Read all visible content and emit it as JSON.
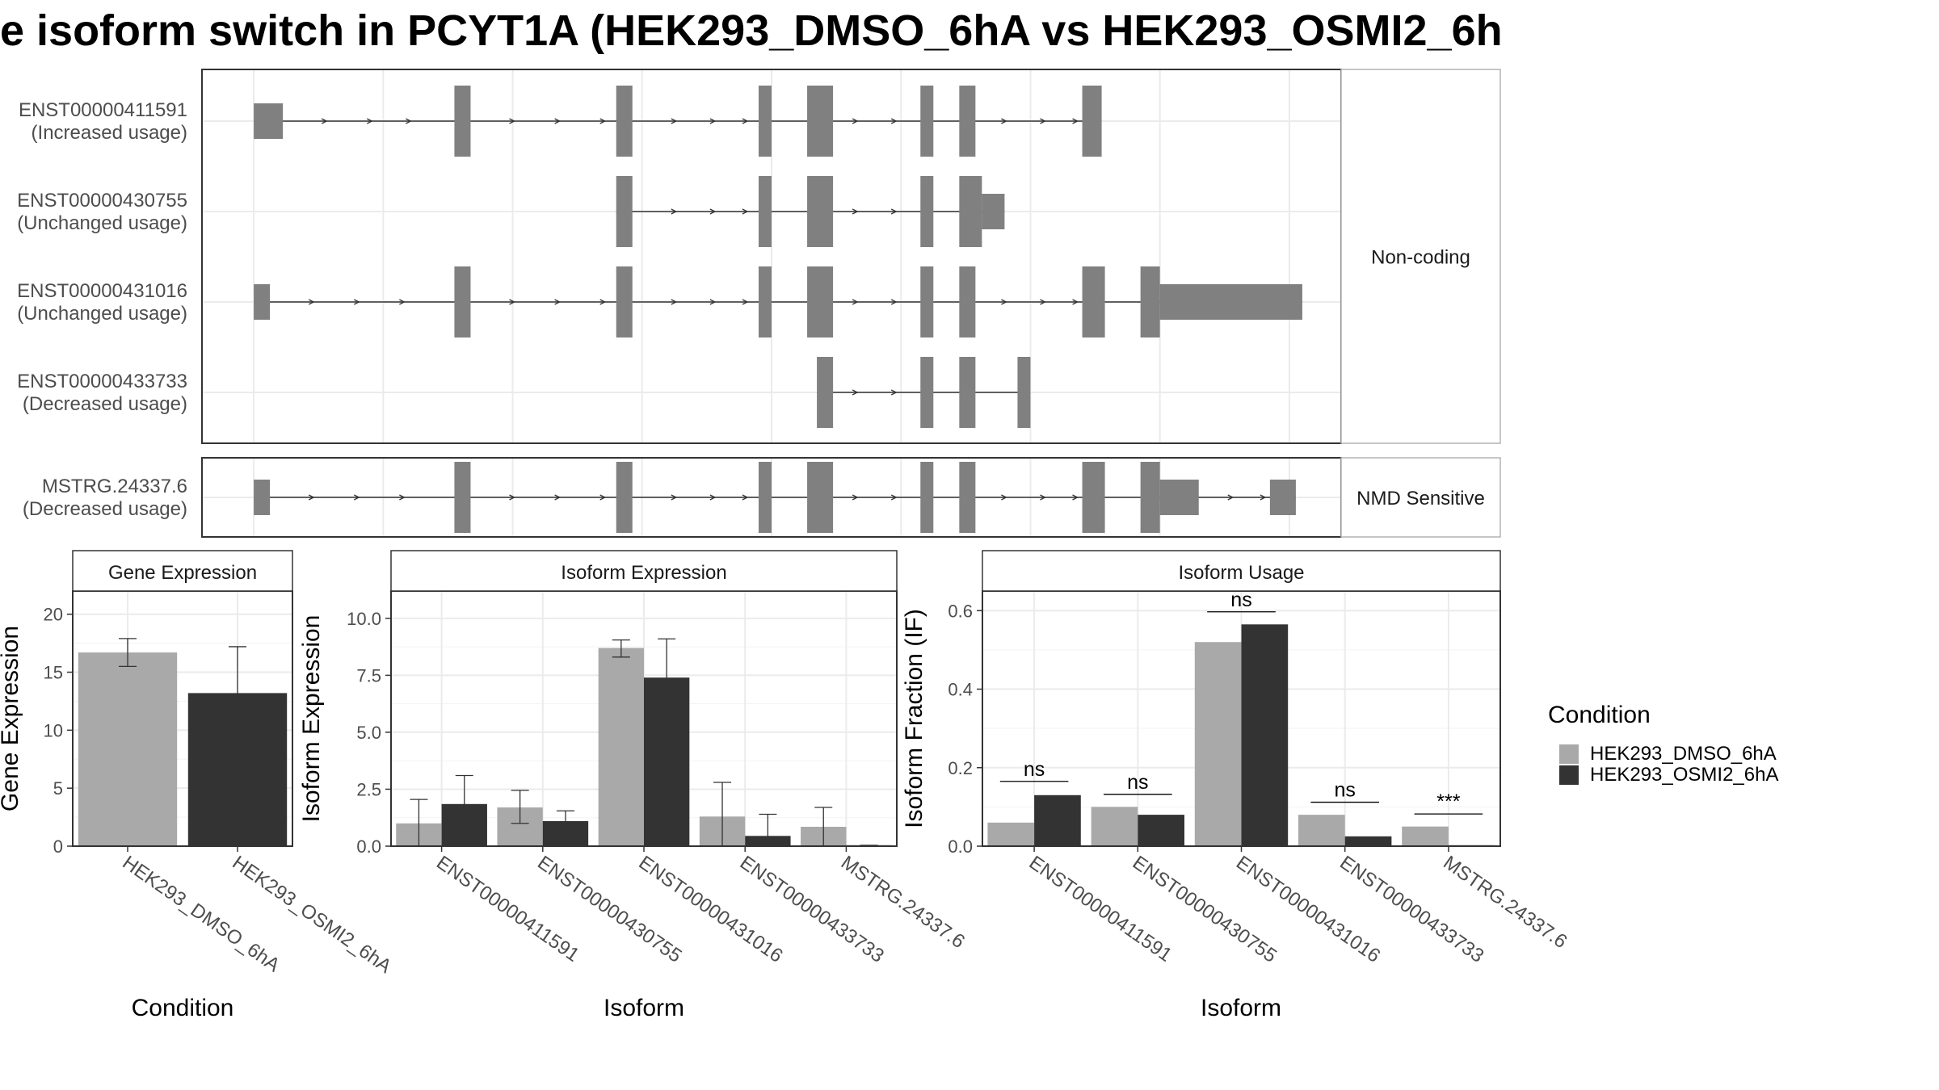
{
  "title": "e isoform switch in PCYT1A (HEK293_DMSO_6hA vs HEK293_OSMI2_6h",
  "colors": {
    "dmso": "#a9a9a9",
    "osmi": "#333333",
    "exon": "#808080",
    "intron": "#333333",
    "grid": "#ebebeb",
    "panel_border": "#333333",
    "strip_border": "#b3b3b3"
  },
  "structure": {
    "x_range": [
      -8,
      168
    ],
    "facets": [
      {
        "label": "Non-coding",
        "transcripts": [
          {
            "id": "ENST00000411591",
            "usage": "(Increased usage)",
            "exons": [
              [
                0,
                4.5,
                "utr"
              ],
              [
                31,
                33.5,
                "cds"
              ],
              [
                56,
                58.5,
                "cds"
              ],
              [
                78,
                80,
                "cds"
              ],
              [
                85.5,
                89.5,
                "cds"
              ],
              [
                103,
                105,
                "cds"
              ],
              [
                109,
                111.5,
                "cds"
              ],
              [
                128,
                131,
                "cds"
              ]
            ],
            "arrows": [
              11,
              18,
              24,
              40,
              47,
              54,
              65,
              71,
              76,
              93,
              99,
              116,
              122,
              127
            ]
          },
          {
            "id": "ENST00000430755",
            "usage": "(Unchanged usage)",
            "exons": [
              [
                56,
                58.5,
                "cds"
              ],
              [
                78,
                80,
                "cds"
              ],
              [
                85.5,
                89.5,
                "cds"
              ],
              [
                103,
                105,
                "cds"
              ],
              [
                109,
                112.5,
                "cds"
              ],
              [
                112.5,
                116,
                "utr"
              ]
            ],
            "arrows": [
              65,
              71,
              76,
              93,
              99
            ]
          },
          {
            "id": "ENST00000431016",
            "usage": "(Unchanged usage)",
            "exons": [
              [
                0,
                2.5,
                "utr"
              ],
              [
                31,
                33.5,
                "cds"
              ],
              [
                56,
                58.5,
                "cds"
              ],
              [
                78,
                80,
                "cds"
              ],
              [
                85.5,
                89.5,
                "cds"
              ],
              [
                103,
                105,
                "cds"
              ],
              [
                109,
                111.5,
                "cds"
              ],
              [
                128,
                131.5,
                "cds"
              ],
              [
                137,
                140,
                "cds"
              ],
              [
                140,
                162,
                "utr"
              ]
            ],
            "arrows": [
              9,
              16,
              23,
              40,
              47,
              54,
              65,
              71,
              76,
              93,
              99,
              116,
              122,
              127
            ]
          },
          {
            "id": "ENST00000433733",
            "usage": "(Decreased usage)",
            "exons": [
              [
                87,
                89.5,
                "cds"
              ],
              [
                103,
                105,
                "cds"
              ],
              [
                109,
                111.5,
                "cds"
              ],
              [
                118,
                120,
                "cds"
              ]
            ],
            "arrows": [
              93,
              99
            ]
          }
        ]
      },
      {
        "label": "NMD Sensitive",
        "transcripts": [
          {
            "id": "MSTRG.24337.6",
            "usage": "(Decreased usage)",
            "exons": [
              [
                0,
                2.5,
                "utr"
              ],
              [
                31,
                33.5,
                "cds"
              ],
              [
                56,
                58.5,
                "cds"
              ],
              [
                78,
                80,
                "cds"
              ],
              [
                85.5,
                89.5,
                "cds"
              ],
              [
                103,
                105,
                "cds"
              ],
              [
                109,
                111.5,
                "cds"
              ],
              [
                128,
                131.5,
                "cds"
              ],
              [
                137,
                140,
                "cds"
              ],
              [
                140,
                146,
                "utr"
              ],
              [
                157,
                161,
                "utr"
              ]
            ],
            "arrows": [
              9,
              16,
              23,
              40,
              47,
              54,
              65,
              71,
              76,
              93,
              99,
              116,
              122,
              127,
              151,
              156
            ]
          }
        ]
      }
    ]
  },
  "chart_data": [
    {
      "type": "bar",
      "title": "Gene Expression",
      "xlabel": "Condition",
      "ylabel": "Gene Expression",
      "ylim": [
        0,
        22
      ],
      "yticks": [
        0,
        5,
        10,
        15,
        20
      ],
      "categories": [
        "HEK293_DMSO_6hA",
        "HEK293_OSMI2_6hA"
      ],
      "series": [
        {
          "name": "HEK293_DMSO_6hA",
          "values": [
            16.7,
            null
          ],
          "err_low": [
            15.5,
            null
          ],
          "err_high": [
            17.9,
            null
          ]
        },
        {
          "name": "HEK293_OSMI2_6hA",
          "values": [
            null,
            13.2
          ],
          "err_low": [
            null,
            9.3
          ],
          "err_high": [
            null,
            17.2
          ]
        }
      ]
    },
    {
      "type": "bar",
      "title": "Isoform Expression",
      "xlabel": "Isoform",
      "ylabel": "Isoform Expression",
      "ylim": [
        0,
        11.2
      ],
      "yticks": [
        0.0,
        2.5,
        5.0,
        7.5,
        10.0
      ],
      "tick_labels": [
        "0.0",
        "2.5",
        "5.0",
        "7.5",
        "10.0"
      ],
      "categories": [
        "ENST00000411591",
        "ENST00000430755",
        "ENST00000431016",
        "ENST00000433733",
        "MSTRG.24337.6"
      ],
      "series": [
        {
          "name": "HEK293_DMSO_6hA",
          "values": [
            1.0,
            1.7,
            8.7,
            1.3,
            0.85
          ],
          "err_low": [
            0.0,
            1.0,
            8.3,
            0.0,
            0.0
          ],
          "err_high": [
            2.05,
            2.45,
            9.05,
            2.8,
            1.7
          ]
        },
        {
          "name": "HEK293_OSMI2_6hA",
          "values": [
            1.85,
            1.1,
            7.4,
            0.45,
            0.02
          ],
          "err_low": [
            0.6,
            0.7,
            5.7,
            0.0,
            0.0
          ],
          "err_high": [
            3.1,
            1.55,
            9.1,
            1.4,
            0.04
          ]
        }
      ]
    },
    {
      "type": "bar",
      "title": "Isoform Usage",
      "xlabel": "Isoform",
      "ylabel": "Isoform Fraction (IF)",
      "ylim": [
        0,
        0.65
      ],
      "yticks": [
        0.0,
        0.2,
        0.4,
        0.6
      ],
      "tick_labels": [
        "0.0",
        "0.2",
        "0.4",
        "0.6"
      ],
      "categories": [
        "ENST00000411591",
        "ENST00000430755",
        "ENST00000431016",
        "ENST00000433733",
        "MSTRG.24337.6"
      ],
      "series": [
        {
          "name": "HEK293_DMSO_6hA",
          "values": [
            0.06,
            0.1,
            0.52,
            0.08,
            0.05
          ]
        },
        {
          "name": "HEK293_OSMI2_6hA",
          "values": [
            0.13,
            0.08,
            0.565,
            0.025,
            0.0
          ]
        }
      ],
      "significance": [
        {
          "label": "ns",
          "y": 0.165
        },
        {
          "label": "ns",
          "y": 0.132
        },
        {
          "label": "ns",
          "y": 0.597
        },
        {
          "label": "ns",
          "y": 0.112
        },
        {
          "label": "***",
          "y": 0.082
        }
      ]
    }
  ],
  "legend": {
    "title": "Condition",
    "items": [
      "HEK293_DMSO_6hA",
      "HEK293_OSMI2_6hA"
    ]
  }
}
